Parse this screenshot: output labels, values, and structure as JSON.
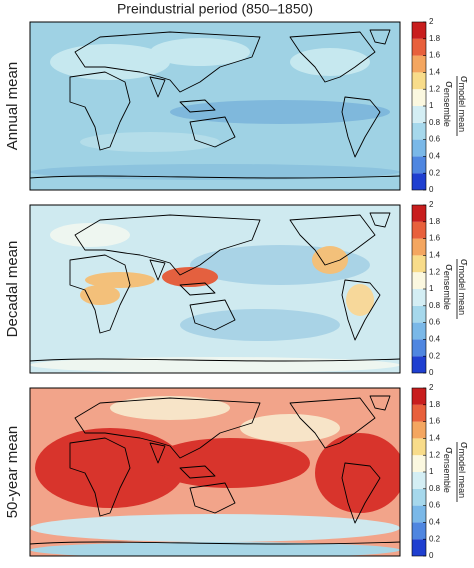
{
  "title": "Preindustrial period (850–1850)",
  "panels": [
    {
      "label": "Annual mean"
    },
    {
      "label": "Decadal mean"
    },
    {
      "label": "50-year mean"
    }
  ],
  "colorbar": {
    "lim": [
      0,
      2
    ],
    "ticks": [
      0,
      0.2,
      0.4,
      0.6,
      0.8,
      1,
      1.2,
      1.4,
      1.6,
      1.8,
      2
    ],
    "colors": [
      "#1f3fd0",
      "#4f86e0",
      "#7ab8e8",
      "#a6d8ec",
      "#d4eef4",
      "#fbf8e0",
      "#f8dc8a",
      "#f4a660",
      "#e8603c",
      "#c81e1e"
    ],
    "label": {
      "numerator": "σ",
      "numerator_sub": "model mean",
      "denominator": "σ",
      "denominator_sub": "ensemble"
    }
  }
}
